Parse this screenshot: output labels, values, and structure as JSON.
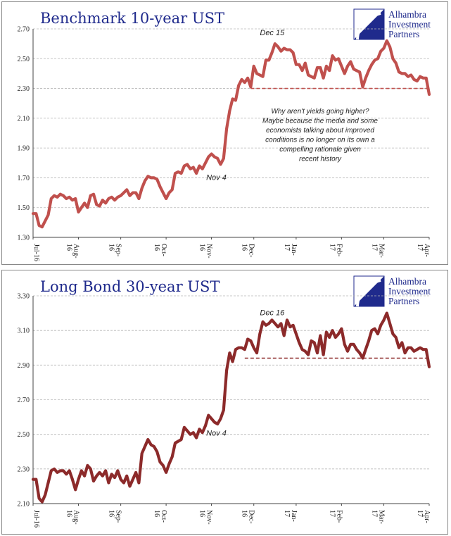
{
  "logo": {
    "lines": [
      "Alhambra",
      "Investment",
      "Partners"
    ]
  },
  "chart_data": [
    {
      "type": "line",
      "title": "Benchmark 10-year UST",
      "ylim": [
        1.3,
        2.7
      ],
      "yticks": [
        "1.30",
        "1.50",
        "1.70",
        "1.90",
        "2.10",
        "2.30",
        "2.50",
        "2.70"
      ],
      "x_tick_labels": [
        "Jul-16",
        "Aug-16",
        "Sep-16",
        "Oct-16",
        "Nov-16",
        "Dec-16",
        "Jan-17",
        "Feb-17",
        "Mar-17",
        "Apr-17"
      ],
      "grid": true,
      "line_color": "#c0504d",
      "dashed_reference": {
        "y": 2.3,
        "from_index": 72
      },
      "annotations": [
        {
          "text": "Dec 15",
          "index": 80
        },
        {
          "text": "Nov 4",
          "index": 62
        }
      ],
      "note_lines": [
        "Why aren't yields going higher?",
        "Maybe because the media and some",
        "economists talking about improved",
        "conditions is no longer on its own a",
        "compelling rationale given",
        "recent history"
      ],
      "values": [
        1.46,
        1.46,
        1.38,
        1.37,
        1.41,
        1.45,
        1.56,
        1.58,
        1.57,
        1.59,
        1.58,
        1.56,
        1.57,
        1.55,
        1.56,
        1.47,
        1.5,
        1.53,
        1.5,
        1.58,
        1.59,
        1.52,
        1.51,
        1.55,
        1.53,
        1.56,
        1.57,
        1.55,
        1.57,
        1.58,
        1.6,
        1.62,
        1.58,
        1.6,
        1.6,
        1.56,
        1.63,
        1.68,
        1.71,
        1.7,
        1.7,
        1.69,
        1.64,
        1.6,
        1.56,
        1.6,
        1.62,
        1.73,
        1.74,
        1.73,
        1.78,
        1.79,
        1.76,
        1.77,
        1.73,
        1.78,
        1.76,
        1.8,
        1.84,
        1.86,
        1.84,
        1.83,
        1.79,
        1.83,
        2.03,
        2.15,
        2.23,
        2.22,
        2.32,
        2.36,
        2.34,
        2.37,
        2.31,
        2.45,
        2.4,
        2.39,
        2.38,
        2.49,
        2.49,
        2.54,
        2.6,
        2.58,
        2.55,
        2.57,
        2.56,
        2.56,
        2.54,
        2.46,
        2.46,
        2.42,
        2.47,
        2.39,
        2.38,
        2.37,
        2.44,
        2.44,
        2.37,
        2.45,
        2.42,
        2.52,
        2.49,
        2.5,
        2.45,
        2.4,
        2.45,
        2.48,
        2.43,
        2.42,
        2.41,
        2.31,
        2.37,
        2.42,
        2.46,
        2.49,
        2.5,
        2.55,
        2.57,
        2.62,
        2.58,
        2.5,
        2.47,
        2.41,
        2.4,
        2.4,
        2.38,
        2.39,
        2.36,
        2.35,
        2.38,
        2.37,
        2.37,
        2.26
      ]
    },
    {
      "type": "line",
      "title": "Long Bond 30-year UST",
      "ylim": [
        2.1,
        3.3
      ],
      "yticks": [
        "2.10",
        "2.30",
        "2.50",
        "2.70",
        "2.90",
        "3.10",
        "3.30"
      ],
      "x_tick_labels": [
        "Jul-16",
        "Aug-16",
        "Sep-16",
        "Oct-16",
        "Nov-16",
        "Dec-16",
        "Jan-17",
        "Feb-17",
        "Mar-17",
        "Apr-17"
      ],
      "grid": true,
      "line_color": "#8c2a2a",
      "dashed_reference": {
        "y": 2.94,
        "from_index": 70
      },
      "annotations": [
        {
          "text": "Dec 16",
          "index": 80
        },
        {
          "text": "Nov 4",
          "index": 62
        }
      ],
      "values": [
        2.24,
        2.24,
        2.13,
        2.11,
        2.15,
        2.22,
        2.29,
        2.3,
        2.28,
        2.29,
        2.29,
        2.27,
        2.29,
        2.24,
        2.18,
        2.24,
        2.29,
        2.26,
        2.32,
        2.3,
        2.23,
        2.26,
        2.28,
        2.26,
        2.29,
        2.22,
        2.27,
        2.25,
        2.29,
        2.24,
        2.22,
        2.26,
        2.2,
        2.24,
        2.28,
        2.22,
        2.39,
        2.43,
        2.47,
        2.44,
        2.43,
        2.4,
        2.34,
        2.32,
        2.28,
        2.33,
        2.37,
        2.45,
        2.46,
        2.47,
        2.54,
        2.52,
        2.5,
        2.51,
        2.48,
        2.53,
        2.51,
        2.55,
        2.61,
        2.59,
        2.57,
        2.56,
        2.59,
        2.64,
        2.87,
        2.97,
        2.92,
        2.99,
        3.0,
        3.0,
        2.99,
        3.05,
        3.04,
        3.0,
        2.97,
        3.08,
        3.15,
        3.13,
        3.14,
        3.16,
        3.14,
        3.12,
        3.14,
        3.07,
        3.16,
        3.12,
        3.13,
        3.08,
        3.03,
        2.99,
        2.98,
        2.96,
        3.04,
        3.03,
        2.97,
        3.07,
        2.96,
        3.09,
        3.06,
        3.1,
        3.06,
        3.08,
        3.11,
        3.02,
        2.98,
        3.02,
        3.02,
        2.99,
        2.97,
        2.94,
        2.99,
        3.04,
        3.1,
        3.11,
        3.08,
        3.13,
        3.16,
        3.2,
        3.14,
        3.08,
        3.06,
        3.0,
        3.03,
        2.97,
        3.0,
        3.0,
        2.98,
        2.99,
        3.0,
        2.99,
        2.99,
        2.89
      ]
    }
  ]
}
